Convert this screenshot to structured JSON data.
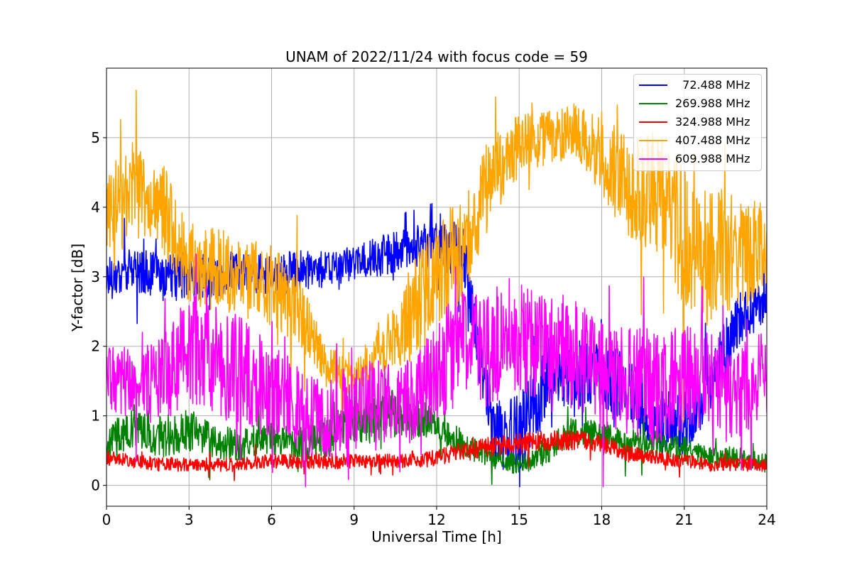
{
  "chart_data": {
    "type": "line",
    "title": "UNAM of 2022/11/24 with focus code = 59",
    "xlabel": "Universal Time [h]",
    "ylabel": "Y-factor [dB]",
    "xlim": [
      0,
      24
    ],
    "ylim": [
      -0.3,
      6.0
    ],
    "xticks": [
      0,
      3,
      6,
      9,
      12,
      15,
      18,
      21,
      24
    ],
    "yticks": [
      0,
      1,
      2,
      3,
      4,
      5
    ],
    "grid": true,
    "legend_position": "top-right",
    "series": [
      {
        "name": "  72.488 MHz",
        "color": "#0000ff",
        "x": [
          0,
          1,
          2,
          3,
          4,
          5,
          6,
          7,
          8,
          9,
          10,
          11,
          12,
          13,
          14,
          15,
          16,
          17,
          18,
          19,
          20,
          21,
          22,
          23,
          24
        ],
        "y": [
          3.0,
          3.1,
          3.0,
          3.0,
          3.0,
          3.1,
          3.0,
          3.1,
          3.1,
          3.2,
          3.3,
          3.4,
          3.5,
          3.3,
          0.8,
          0.7,
          1.5,
          1.6,
          1.6,
          1.4,
          0.9,
          0.9,
          1.5,
          2.4,
          2.6
        ],
        "amp": [
          0.35,
          0.3,
          0.35,
          0.35,
          0.3,
          0.3,
          0.3,
          0.3,
          0.25,
          0.25,
          0.3,
          0.3,
          0.45,
          0.4,
          0.5,
          0.6,
          0.5,
          0.5,
          0.5,
          0.5,
          0.45,
          0.45,
          0.5,
          0.4,
          0.3
        ]
      },
      {
        "name": "269.988 MHz",
        "color": "#008000",
        "x": [
          0,
          1,
          2,
          3,
          4,
          5,
          6,
          7,
          8,
          9,
          10,
          11,
          12,
          13,
          14,
          15,
          16,
          17,
          18,
          19,
          20,
          21,
          22,
          23,
          24
        ],
        "y": [
          0.6,
          0.8,
          0.7,
          0.8,
          0.6,
          0.6,
          0.7,
          0.6,
          0.7,
          0.9,
          1.0,
          1.1,
          0.8,
          0.6,
          0.4,
          0.3,
          0.5,
          0.8,
          0.7,
          0.6,
          0.6,
          0.5,
          0.4,
          0.4,
          0.3
        ],
        "amp": [
          0.3,
          0.3,
          0.3,
          0.3,
          0.25,
          0.25,
          0.25,
          0.25,
          0.3,
          0.35,
          0.35,
          0.35,
          0.25,
          0.2,
          0.15,
          0.15,
          0.2,
          0.2,
          0.2,
          0.2,
          0.2,
          0.2,
          0.15,
          0.15,
          0.15
        ]
      },
      {
        "name": "324.988 MHz",
        "color": "#ff0000",
        "x": [
          0,
          1,
          2,
          3,
          4,
          5,
          6,
          7,
          8,
          9,
          10,
          11,
          12,
          13,
          14,
          15,
          16,
          17,
          18,
          19,
          20,
          21,
          22,
          23,
          24
        ],
        "y": [
          0.4,
          0.35,
          0.3,
          0.3,
          0.3,
          0.3,
          0.35,
          0.35,
          0.35,
          0.35,
          0.35,
          0.35,
          0.4,
          0.5,
          0.55,
          0.6,
          0.65,
          0.65,
          0.6,
          0.45,
          0.4,
          0.35,
          0.3,
          0.3,
          0.3
        ],
        "amp": [
          0.1,
          0.1,
          0.1,
          0.1,
          0.1,
          0.1,
          0.1,
          0.12,
          0.12,
          0.1,
          0.1,
          0.1,
          0.12,
          0.12,
          0.15,
          0.15,
          0.15,
          0.15,
          0.12,
          0.12,
          0.1,
          0.1,
          0.1,
          0.1,
          0.1
        ]
      },
      {
        "name": "407.488 MHz",
        "color": "#ffa500",
        "x": [
          0,
          1,
          2,
          3,
          4,
          5,
          6,
          7,
          8,
          9,
          10,
          11,
          12,
          13,
          14,
          15,
          16,
          17,
          18,
          19,
          20,
          21,
          22,
          23,
          24
        ],
        "y": [
          3.8,
          4.3,
          4.0,
          3.2,
          3.1,
          3.0,
          2.9,
          2.5,
          1.7,
          1.6,
          1.9,
          2.4,
          3.0,
          3.4,
          4.4,
          4.9,
          5.0,
          5.1,
          4.8,
          4.3,
          4.2,
          3.6,
          3.3,
          3.4,
          3.4
        ],
        "amp": [
          0.7,
          0.7,
          0.7,
          0.6,
          0.6,
          0.6,
          0.6,
          0.5,
          0.3,
          0.3,
          0.3,
          0.7,
          0.8,
          0.8,
          0.6,
          0.45,
          0.4,
          0.4,
          0.6,
          0.8,
          0.9,
          1.0,
          1.0,
          0.9,
          0.6
        ]
      },
      {
        "name": "609.988 MHz",
        "color": "#ff00ff",
        "x": [
          0,
          1,
          2,
          3,
          4,
          5,
          6,
          7,
          8,
          9,
          10,
          11,
          12,
          13,
          14,
          15,
          16,
          17,
          18,
          19,
          20,
          21,
          22,
          23,
          24
        ],
        "y": [
          1.5,
          1.5,
          1.5,
          2.0,
          1.8,
          1.6,
          1.4,
          1.1,
          0.9,
          1.2,
          1.2,
          1.2,
          1.7,
          2.0,
          1.9,
          2.1,
          2.0,
          1.9,
          1.6,
          1.5,
          1.4,
          1.5,
          1.4,
          1.3,
          1.6
        ],
        "amp": [
          0.5,
          0.5,
          0.6,
          0.8,
          0.8,
          0.8,
          0.7,
          0.6,
          0.6,
          0.6,
          0.6,
          0.6,
          0.8,
          0.8,
          0.8,
          0.8,
          0.8,
          0.8,
          0.8,
          0.8,
          0.8,
          0.8,
          0.8,
          0.7,
          0.7
        ]
      }
    ]
  }
}
